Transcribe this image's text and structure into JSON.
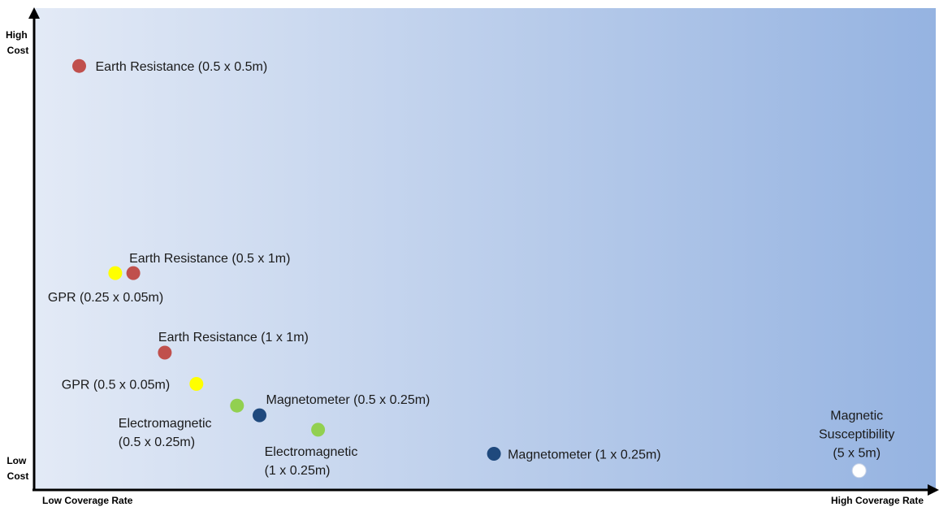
{
  "chart_data": {
    "type": "scatter",
    "axes": {
      "x_low_label": "Low Coverage Rate",
      "x_high_label": "High Coverage Rate",
      "y_high_label_lines": [
        "High",
        "Cost"
      ],
      "y_low_label_lines": [
        "Low",
        "Cost"
      ]
    },
    "colors": {
      "red": "#c0504d",
      "yellow": "#ffff00",
      "green": "#92d050",
      "navy": "#1f497d",
      "white": "#ffffff",
      "background_left": "#e3eaf6",
      "background_right": "#95b3e1"
    },
    "grid": false,
    "legend": "none",
    "points": [
      {
        "name": "earth-resistance-05x05",
        "label_lines": [
          "Earth Resistance (0.5 x 0.5m)"
        ],
        "x": 5,
        "y": 88,
        "color": "red"
      },
      {
        "name": "earth-resistance-05x1",
        "label_lines": [
          "Earth Resistance (0.5 x 1m)"
        ],
        "x": 11,
        "y": 45,
        "color": "red"
      },
      {
        "name": "gpr-025x005",
        "label_lines": [
          "GPR (0.25 x 0.05m)"
        ],
        "x": 9,
        "y": 45,
        "color": "yellow"
      },
      {
        "name": "earth-resistance-1x1",
        "label_lines": [
          "Earth Resistance (1 x 1m)"
        ],
        "x": 14.5,
        "y": 28.5,
        "color": "red"
      },
      {
        "name": "gpr-05x005",
        "label_lines": [
          "GPR (0.5 x 0.05m)"
        ],
        "x": 18,
        "y": 22,
        "color": "yellow"
      },
      {
        "name": "electromagnetic-05x025",
        "label_lines": [
          "Electromagnetic",
          "(0.5 x 0.25m)"
        ],
        "x": 22.5,
        "y": 17.5,
        "color": "green"
      },
      {
        "name": "magnetometer-05x025",
        "label_lines": [
          "Magnetometer (0.5 x 0.25m)"
        ],
        "x": 25,
        "y": 15.5,
        "color": "navy"
      },
      {
        "name": "electromagnetic-1x025",
        "label_lines": [
          "Electromagnetic",
          "(1 x 0.25m)"
        ],
        "x": 31.5,
        "y": 12.5,
        "color": "green"
      },
      {
        "name": "magnetometer-1x025",
        "label_lines": [
          "Magnetometer (1 x 0.25m)"
        ],
        "x": 51,
        "y": 7.5,
        "color": "navy"
      },
      {
        "name": "magnetic-susceptibility-5x5",
        "label_lines": [
          "Magnetic",
          "Susceptibility",
          "(5 x 5m)"
        ],
        "x": 91.5,
        "y": 4,
        "color": "white"
      }
    ]
  }
}
